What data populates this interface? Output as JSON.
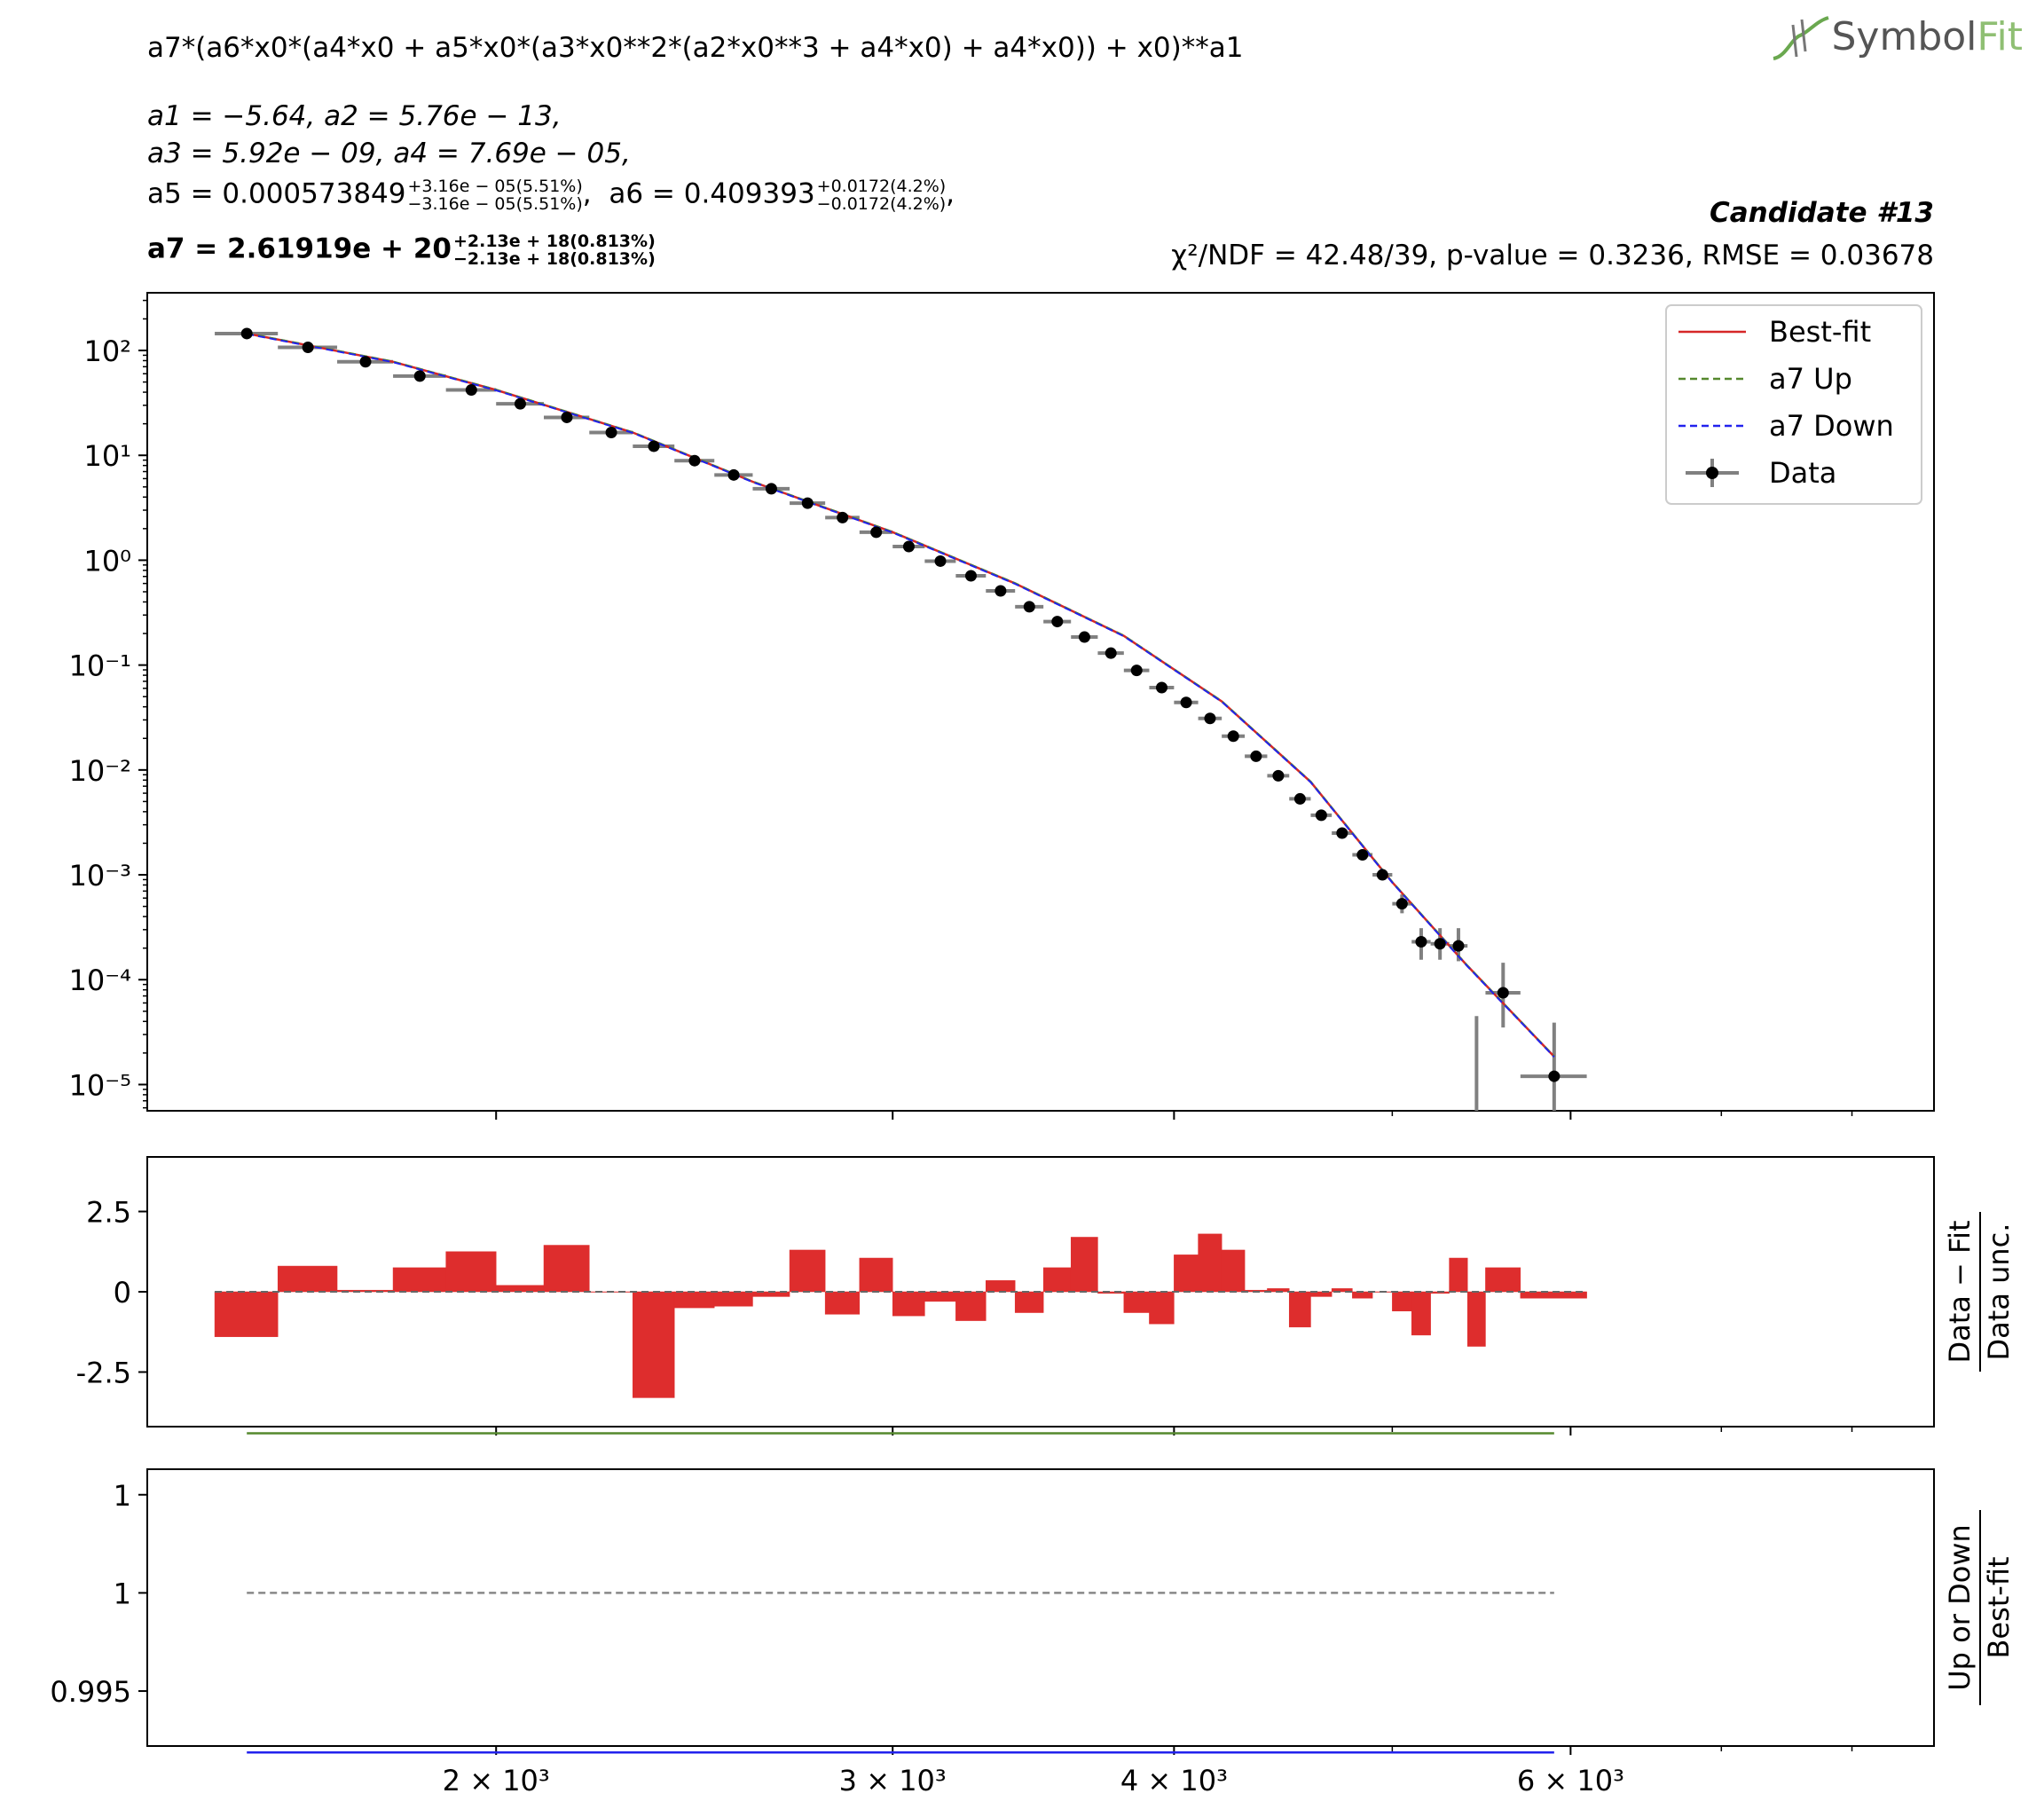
{
  "header": {
    "formula": "a7*(a6*x0*(a4*x0 + a5*x0*(a3*x0**2*(a2*x0**3 + a4*x0) + a4*x0)) + x0)**a1",
    "params_line1": "a1 = −5.64,  a2 = 5.76e − 13,",
    "params_line2": "a3 = 5.92e − 09,  a4 = 7.69e − 05,",
    "a5_value": "a5 = 0.000573849",
    "a5_up": "+3.16e − 05(5.51%)",
    "a5_down": "−3.16e − 05(5.51%)",
    "a6_value": "a6 = 0.409393",
    "a6_up": "+0.0172(4.2%)",
    "a6_down": "−0.0172(4.2%)",
    "a6_sep": ",",
    "a7_value": "a7 = 2.61919e + 20",
    "a7_up": "+2.13e + 18(0.813%)",
    "a7_down": "−2.13e + 18(0.813%)",
    "candidate": "Candidate #13",
    "stats": "χ²/NDF = 42.48/39, p-value = 0.3236, RMSE = 0.03678",
    "logo_text_main": "Symbol",
    "logo_text_accent": "Fit"
  },
  "chart_data": [
    {
      "type": "scatter",
      "panel": "main",
      "xscale": "log",
      "yscale": "log",
      "xlim": [
        1400,
        8700
      ],
      "ylim_log10": [
        -5.25,
        2.55
      ],
      "ytick_labels": [
        "10²",
        "10¹",
        "10⁰",
        "10⁻¹",
        "10⁻²",
        "10⁻³",
        "10⁻⁴",
        "10⁻⁵"
      ],
      "ytick_log10": [
        2,
        1,
        0,
        -1,
        -2,
        -3,
        -4,
        -5
      ],
      "legend_position": "top-right",
      "legend": [
        {
          "label": "Best-fit",
          "style": "solid",
          "color": "#d62728"
        },
        {
          "label": "a7 Up",
          "style": "dashed",
          "color": "#55882d"
        },
        {
          "label": "a7 Down",
          "style": "dashed",
          "color": "#2222ee"
        },
        {
          "label": "Data",
          "style": "point",
          "color": "#000000"
        }
      ],
      "bins": [
        {
          "x": 1550,
          "xlo": 1500,
          "xhi": 1600,
          "y": 145
        },
        {
          "x": 1650,
          "xlo": 1600,
          "xhi": 1700,
          "y": 107
        },
        {
          "x": 1750,
          "xlo": 1700,
          "xhi": 1800,
          "y": 78
        },
        {
          "x": 1850,
          "xlo": 1800,
          "xhi": 1900,
          "y": 57
        },
        {
          "x": 1950,
          "xlo": 1900,
          "xhi": 2000,
          "y": 42
        },
        {
          "x": 2050,
          "xlo": 2000,
          "xhi": 2100,
          "y": 31
        },
        {
          "x": 2150,
          "xlo": 2100,
          "xhi": 2200,
          "y": 23
        },
        {
          "x": 2250,
          "xlo": 2200,
          "xhi": 2300,
          "y": 16.5
        },
        {
          "x": 2350,
          "xlo": 2300,
          "xhi": 2400,
          "y": 12.2
        },
        {
          "x": 2450,
          "xlo": 2400,
          "xhi": 2500,
          "y": 8.9
        },
        {
          "x": 2550,
          "xlo": 2500,
          "xhi": 2600,
          "y": 6.5
        },
        {
          "x": 2650,
          "xlo": 2600,
          "xhi": 2700,
          "y": 4.8
        },
        {
          "x": 2750,
          "xlo": 2700,
          "xhi": 2800,
          "y": 3.5
        },
        {
          "x": 2850,
          "xlo": 2800,
          "xhi": 2900,
          "y": 2.55
        },
        {
          "x": 2950,
          "xlo": 2900,
          "xhi": 3000,
          "y": 1.85
        },
        {
          "x": 3050,
          "xlo": 3000,
          "xhi": 3100,
          "y": 1.35
        },
        {
          "x": 3150,
          "xlo": 3100,
          "xhi": 3200,
          "y": 0.98
        },
        {
          "x": 3250,
          "xlo": 3200,
          "xhi": 3300,
          "y": 0.71
        },
        {
          "x": 3350,
          "xlo": 3300,
          "xhi": 3400,
          "y": 0.51
        },
        {
          "x": 3450,
          "xlo": 3400,
          "xhi": 3500,
          "y": 0.36
        },
        {
          "x": 3550,
          "xlo": 3500,
          "xhi": 3600,
          "y": 0.26
        },
        {
          "x": 3650,
          "xlo": 3600,
          "xhi": 3700,
          "y": 0.185
        },
        {
          "x": 3750,
          "xlo": 3700,
          "xhi": 3800,
          "y": 0.13
        },
        {
          "x": 3850,
          "xlo": 3800,
          "xhi": 3900,
          "y": 0.089
        },
        {
          "x": 3950,
          "xlo": 3900,
          "xhi": 4000,
          "y": 0.061
        },
        {
          "x": 4050,
          "xlo": 4000,
          "xhi": 4100,
          "y": 0.044
        },
        {
          "x": 4150,
          "xlo": 4100,
          "xhi": 4200,
          "y": 0.031
        },
        {
          "x": 4250,
          "xlo": 4200,
          "xhi": 4300,
          "y": 0.021
        },
        {
          "x": 4350,
          "xlo": 4300,
          "xhi": 4400,
          "y": 0.0135
        },
        {
          "x": 4450,
          "xlo": 4400,
          "xhi": 4500,
          "y": 0.0088
        },
        {
          "x": 4550,
          "xlo": 4500,
          "xhi": 4600,
          "y": 0.0053
        },
        {
          "x": 4650,
          "xlo": 4600,
          "xhi": 4700,
          "y": 0.0037
        },
        {
          "x": 4750,
          "xlo": 4700,
          "xhi": 4800,
          "y": 0.0025
        },
        {
          "x": 4850,
          "xlo": 4800,
          "xhi": 4900,
          "y": 0.00155
        },
        {
          "x": 4950,
          "xlo": 4900,
          "xhi": 5000,
          "y": 0.001
        },
        {
          "x": 5050,
          "xlo": 5000,
          "xhi": 5100,
          "y": 0.00053,
          "elo": 0.00043,
          "ehi": 0.00065
        },
        {
          "x": 5150,
          "xlo": 5100,
          "xhi": 5200,
          "y": 0.00023,
          "elo": 0.000155,
          "ehi": 0.00031
        },
        {
          "x": 5250,
          "xlo": 5200,
          "xhi": 5300,
          "y": 0.00022,
          "elo": 0.000155,
          "ehi": 0.00031
        },
        {
          "x": 5350,
          "xlo": 5300,
          "xhi": 5400,
          "y": 0.00021,
          "elo": 0.00015,
          "ehi": 0.00031
        },
        {
          "x": 5450,
          "xlo": 5400,
          "xhi": 5500,
          "y": 0,
          "elo": 0,
          "ehi": 4.5e-05
        },
        {
          "x": 5600,
          "xlo": 5500,
          "xhi": 5700,
          "y": 7.5e-05,
          "elo": 3.5e-05,
          "ehi": 0.000145
        },
        {
          "x": 5900,
          "xlo": 5700,
          "xhi": 6100,
          "y": 1.2e-05,
          "elo": 0,
          "ehi": 3.9e-05
        }
      ],
      "fit_curve": {
        "x": [
          1550,
          1800,
          2000,
          2300,
          2600,
          3000,
          3400,
          3800,
          4200,
          4600,
          5000,
          5400,
          5900
        ],
        "y": [
          145,
          78,
          42,
          16.5,
          5.6,
          1.85,
          0.6,
          0.19,
          0.045,
          0.0077,
          0.00085,
          0.000135,
          1.85e-05
        ]
      }
    },
    {
      "type": "bar",
      "panel": "pull",
      "ylabel": "Data − Fit / Data unc.",
      "ylim": [
        -4.2,
        4.2
      ],
      "ytick_labels": [
        "2.5",
        "0",
        "-2.5"
      ],
      "ytick_values": [
        2.5,
        0,
        -2.5
      ],
      "values": [
        -1.4,
        0.8,
        0.05,
        0.75,
        1.25,
        0.2,
        1.45,
        0,
        -3.3,
        -0.5,
        -0.45,
        -0.15,
        1.3,
        -0.7,
        1.05,
        -0.75,
        -0.3,
        -0.9,
        0.35,
        -0.65,
        0.75,
        1.7,
        -0.05,
        -0.65,
        -1.0,
        1.15,
        1.8,
        1.3,
        0.05,
        0.1,
        -1.1,
        -0.15,
        0.1,
        -0.2,
        0,
        -0.6,
        -1.35,
        -0.05,
        1.05,
        -1.7,
        0.75,
        -0.2
      ]
    },
    {
      "type": "line",
      "panel": "ratio",
      "ylabel": "Up or Down / Best-fit",
      "ylim": [
        0.9922,
        1.0063
      ],
      "ytick_labels": [
        "1",
        "1",
        "0.995"
      ],
      "ytick_values": [
        1.005,
        1.0,
        0.995
      ],
      "series": [
        {
          "name": "a7 Up",
          "value": 1.00813,
          "color": "#55882d",
          "style": "solid"
        },
        {
          "name": "a7 Down",
          "value": 0.99187,
          "color": "#2222ee",
          "style": "solid"
        },
        {
          "name": "",
          "value": 1.0,
          "color": "#888888",
          "style": "dashed"
        }
      ],
      "xtick_labels": [
        "2 × 10³",
        "3 × 10³",
        "4 × 10³",
        "6 × 10³"
      ],
      "xtick_values": [
        2000,
        3000,
        4000,
        6000
      ]
    }
  ]
}
